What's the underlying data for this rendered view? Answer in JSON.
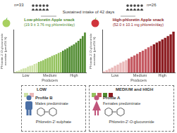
{
  "header": {
    "text": "Sustained intake of 42 days",
    "groups": [
      "n=33",
      "n=26"
    ]
  },
  "chart_data": [
    {
      "type": "bar",
      "title": "Low-phloretin Apple snack",
      "subtitle": "(19.9 ± 3.76 mg phloretin/day)",
      "y_label": [
        "Phloretin-2'-O-glucuronide",
        "excretion (µmol/24 h)"
      ],
      "x_label": "Producers",
      "categories": [
        null,
        null,
        null,
        null,
        null,
        "Low",
        null,
        null,
        null,
        null,
        null,
        null,
        null,
        null,
        null,
        null,
        "Medium",
        null,
        null,
        null,
        null,
        null,
        null,
        null,
        null,
        null,
        null,
        "High",
        null,
        null,
        null,
        null,
        null
      ],
      "values": [
        0.2,
        0.4,
        0.5,
        0.8,
        1.0,
        1.1,
        1.4,
        1.6,
        1.7,
        2.0,
        2.2,
        2.5,
        2.7,
        2.9,
        3.2,
        3.4,
        3.6,
        3.9,
        4.1,
        4.3,
        4.6,
        4.8,
        5.1,
        5.4,
        5.7,
        6.0,
        6.3,
        6.6,
        7.0,
        7.4,
        7.9,
        8.5,
        9.3
      ],
      "colors": [
        "#cfe3a8",
        "#cfe3a8",
        "#cfe3a8",
        "#cfe3a8",
        "#cfe3a8",
        "#cfe3a8",
        "#cfe3a8",
        "#cfe3a8",
        "#cfe3a8",
        "#cfe3a8",
        "#cfe3a8",
        "#94c25e",
        "#94c25e",
        "#94c25e",
        "#94c25e",
        "#94c25e",
        "#94c25e",
        "#94c25e",
        "#94c25e",
        "#94c25e",
        "#94c25e",
        "#94c25e",
        "#4f8a2f",
        "#4f8a2f",
        "#4f8a2f",
        "#4f8a2f",
        "#4f8a2f",
        "#4f8a2f",
        "#4f8a2f",
        "#4f8a2f",
        "#4f8a2f",
        "#4f8a2f",
        "#4f8a2f"
      ],
      "ylim": [
        0,
        10
      ],
      "tick_labels": "x",
      "grid": false
    },
    {
      "type": "bar",
      "title": "High-phloretin Apple snack",
      "subtitle": "(52.0 ± 10.1 mg phloretin/day)",
      "y_label": [
        "Phloretin-2'-O-glucuronide",
        "excretion (µmol/24 h)"
      ],
      "x_label": "Producers",
      "categories": [
        null,
        null,
        null,
        null,
        "Low",
        null,
        null,
        null,
        null,
        null,
        null,
        null,
        null,
        "Medium",
        null,
        null,
        null,
        null,
        null,
        null,
        null,
        "High",
        null,
        null,
        null,
        null
      ],
      "values": [
        0.3,
        0.6,
        0.9,
        1.2,
        1.6,
        1.9,
        2.3,
        2.6,
        2.9,
        3.3,
        3.7,
        4.0,
        4.4,
        4.8,
        5.1,
        5.5,
        5.9,
        6.2,
        6.6,
        7.0,
        7.3,
        7.7,
        8.1,
        8.5,
        8.9,
        9.5
      ],
      "colors": [
        "#eab9b9",
        "#eab9b9",
        "#eab9b9",
        "#eab9b9",
        "#eab9b9",
        "#eab9b9",
        "#eab9b9",
        "#eab9b9",
        "#eab9b9",
        "#c55a62",
        "#c55a62",
        "#c55a62",
        "#c55a62",
        "#c55a62",
        "#c55a62",
        "#c55a62",
        "#c55a62",
        "#c55a62",
        "#8b1a1f",
        "#8b1a1f",
        "#8b1a1f",
        "#8b1a1f",
        "#8b1a1f",
        "#8b1a1f",
        "#8b1a1f",
        "#8b1a1f"
      ],
      "ylim": [
        0,
        10
      ],
      "tick_labels": "x",
      "grid": false
    }
  ],
  "profiles": [
    {
      "label": "LOW",
      "profile": "Profile B",
      "sex": "Males predominate",
      "metabolite": "Phloretin-2'-sulphate"
    },
    {
      "label": "MEDIUM and HIGH",
      "profile": "Profile A",
      "sex": "Females predominate",
      "metabolite": "Phloretin-2'-O-glucuronide"
    }
  ]
}
